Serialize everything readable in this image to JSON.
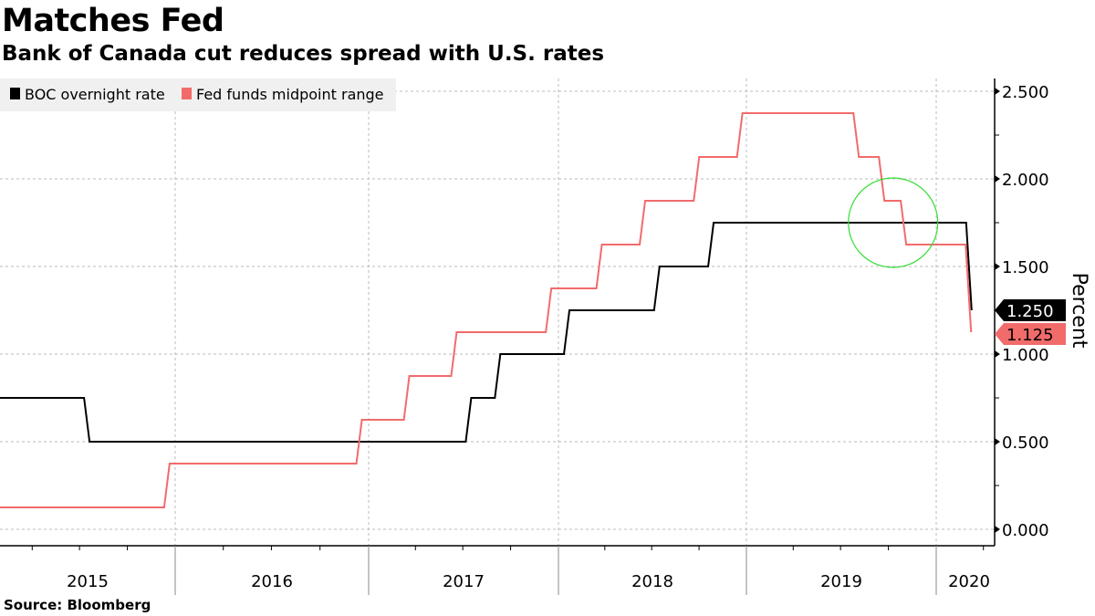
{
  "header": {
    "title": "Matches Fed",
    "subtitle": "Bank of Canada cut reduces spread with U.S. rates"
  },
  "footer": {
    "source": "Source: Bloomberg"
  },
  "colors": {
    "boc": "#000000",
    "fed": "#f26b6b",
    "highlight_circle": "#33dd33",
    "legend_bg": "#f0f0f0",
    "grid": "#bbbbbb"
  },
  "chart_data": {
    "type": "line",
    "step": true,
    "title": "Matches Fed",
    "subtitle": "Bank of Canada cut reduces spread with U.S. rates",
    "xlabel": "",
    "ylabel": "Percent",
    "x_range": [
      "2015-01-22",
      "2020-03-04"
    ],
    "ylim": [
      0,
      2.6
    ],
    "y_ticks": [
      "0.000",
      "0.500",
      "1.000",
      "1.500",
      "2.000",
      "2.500"
    ],
    "y_tick_values": [
      0,
      0.5,
      1.0,
      1.5,
      2.0,
      2.5
    ],
    "x_tick_labels": [
      "2015",
      "2016",
      "2017",
      "2018",
      "2019",
      "2020"
    ],
    "grid": true,
    "legend_position": "top-left",
    "series": [
      {
        "name": "BOC overnight rate",
        "color": "#000000",
        "last_value_label": "1.250",
        "points": [
          {
            "date": "2015-01-22",
            "value": 0.75
          },
          {
            "date": "2015-07-15",
            "value": 0.5
          },
          {
            "date": "2017-07-12",
            "value": 0.75
          },
          {
            "date": "2017-09-06",
            "value": 1.0
          },
          {
            "date": "2018-01-17",
            "value": 1.25
          },
          {
            "date": "2018-07-11",
            "value": 1.5
          },
          {
            "date": "2018-10-24",
            "value": 1.75
          },
          {
            "date": "2020-03-04",
            "value": 1.25
          }
        ]
      },
      {
        "name": "Fed funds midpoint range",
        "color": "#f26b6b",
        "last_value_label": "1.125",
        "points": [
          {
            "date": "2015-01-22",
            "value": 0.125
          },
          {
            "date": "2015-12-16",
            "value": 0.375
          },
          {
            "date": "2016-12-14",
            "value": 0.625
          },
          {
            "date": "2017-03-15",
            "value": 0.875
          },
          {
            "date": "2017-06-14",
            "value": 1.125
          },
          {
            "date": "2017-12-13",
            "value": 1.375
          },
          {
            "date": "2018-03-21",
            "value": 1.625
          },
          {
            "date": "2018-06-13",
            "value": 1.875
          },
          {
            "date": "2018-09-26",
            "value": 2.125
          },
          {
            "date": "2018-12-19",
            "value": 2.375
          },
          {
            "date": "2019-07-31",
            "value": 2.125
          },
          {
            "date": "2019-09-18",
            "value": 1.875
          },
          {
            "date": "2019-10-30",
            "value": 1.625
          },
          {
            "date": "2020-03-03",
            "value": 1.125
          }
        ]
      }
    ],
    "annotations": [
      {
        "type": "circle",
        "center_date": "2019-10-10",
        "center_value": 1.75,
        "color": "#33dd33",
        "note": "highlight of Fed crossing below BOC"
      }
    ]
  }
}
